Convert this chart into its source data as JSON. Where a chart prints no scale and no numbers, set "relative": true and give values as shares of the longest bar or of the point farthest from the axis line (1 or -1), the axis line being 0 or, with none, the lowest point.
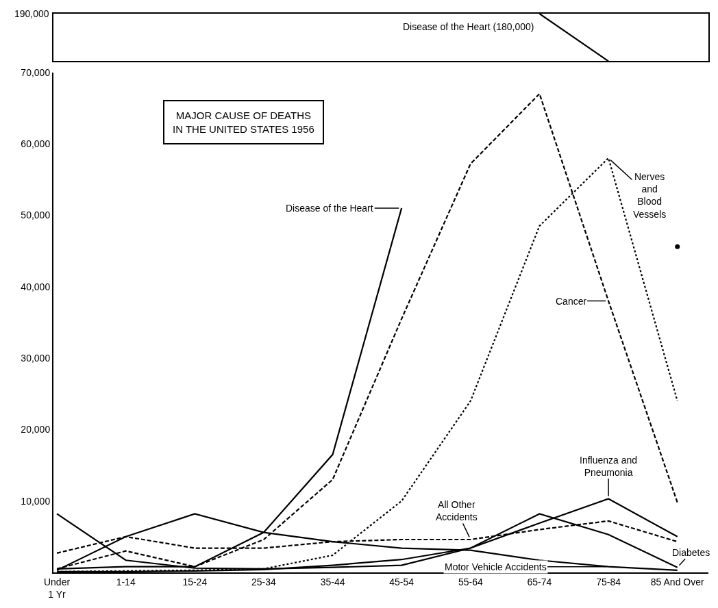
{
  "chart_data": [
    {
      "type": "line",
      "relative": true,
      "categories": [
        null,
        null,
        null,
        null,
        null,
        null,
        null,
        null,
        null,
        null
      ],
      "marker": "none",
      "series": [
        {
          "color": "#000000",
          "line_style": "solid",
          "values": [
            null,
            null,
            null,
            null,
            null,
            null,
            null,
            1,
            0,
            null
          ]
        }
      ],
      "annotations": [
        "190,000",
        "Disease of the Heart (180,000)"
      ]
    },
    {
      "type": "line",
      "title": "MAJOR CAUSE OF DEATHS\nIN THE UNITED STATES 1956",
      "categories": [
        "Under\n1 Yr",
        "1-14",
        "15-24",
        "25-34",
        "35-44",
        "45-54",
        "55-64",
        "65-74",
        "75-84",
        "85 And Over"
      ],
      "ylim": [
        0,
        70000
      ],
      "yticks": [
        {
          "value": 10000,
          "label": "10,000"
        },
        {
          "value": 20000,
          "label": "20,000"
        },
        {
          "value": 30000,
          "label": "30,000"
        },
        {
          "value": 40000,
          "label": "40,000"
        },
        {
          "value": 50000,
          "label": "50,000"
        },
        {
          "value": 60000,
          "label": "60,000"
        },
        {
          "value": 70000,
          "label": "70,000"
        }
      ],
      "marker": "none",
      "series": [
        {
          "color": "#000000",
          "line_style": "solid",
          "values": [
            500,
            800,
            800,
            5600,
            16500,
            51000,
            null,
            null,
            null,
            45600
          ]
        },
        {
          "color": "#000000",
          "line_style": "dashed",
          "values": [
            500,
            3000,
            800,
            4600,
            13000,
            35500,
            57200,
            67000,
            38000,
            9800
          ]
        },
        {
          "color": "#000000",
          "line_style": "dotted",
          "values": [
            100,
            200,
            300,
            500,
            2400,
            10000,
            24000,
            48500,
            58000,
            24000
          ]
        },
        {
          "color": "#000000",
          "line_style": "solid",
          "values": [
            8200,
            1700,
            600,
            500,
            700,
            1000,
            3400,
            6900,
            10300,
            5000
          ]
        },
        {
          "color": "#000000",
          "line_style": "solid",
          "values": [
            100,
            100,
            200,
            400,
            1000,
            1800,
            3400,
            8200,
            5300,
            700
          ]
        },
        {
          "color": "#000000",
          "line_style": "solid",
          "values": [
            300,
            5000,
            8200,
            5600,
            4300,
            3400,
            3100,
            1700,
            800,
            300
          ]
        },
        {
          "color": "#000000",
          "line_style": "dashed",
          "values": [
            2700,
            5000,
            3400,
            3400,
            4300,
            4600,
            4600,
            6000,
            7200,
            4300
          ]
        }
      ],
      "annotations": [
        {
          "text": "Disease of the Heart",
          "x": "45-54",
          "y": 51000
        },
        {
          "text": "Cancer",
          "x": "75-84",
          "y": 38000
        },
        {
          "text": "Nerves\nand\nBlood\nVessels",
          "x": "75-84",
          "y": 58000
        },
        {
          "text": "Influenza and\nPneumonia",
          "x": "75-84",
          "y": 10300
        },
        {
          "text": "All Other\nAccidents",
          "x": "55-64",
          "y": 4600
        },
        {
          "text": "Diabetes",
          "x": "85 And Over",
          "y": 700
        },
        {
          "text": "Motor Vehicle Accidents",
          "x": "75-84",
          "y": 800
        }
      ]
    }
  ]
}
